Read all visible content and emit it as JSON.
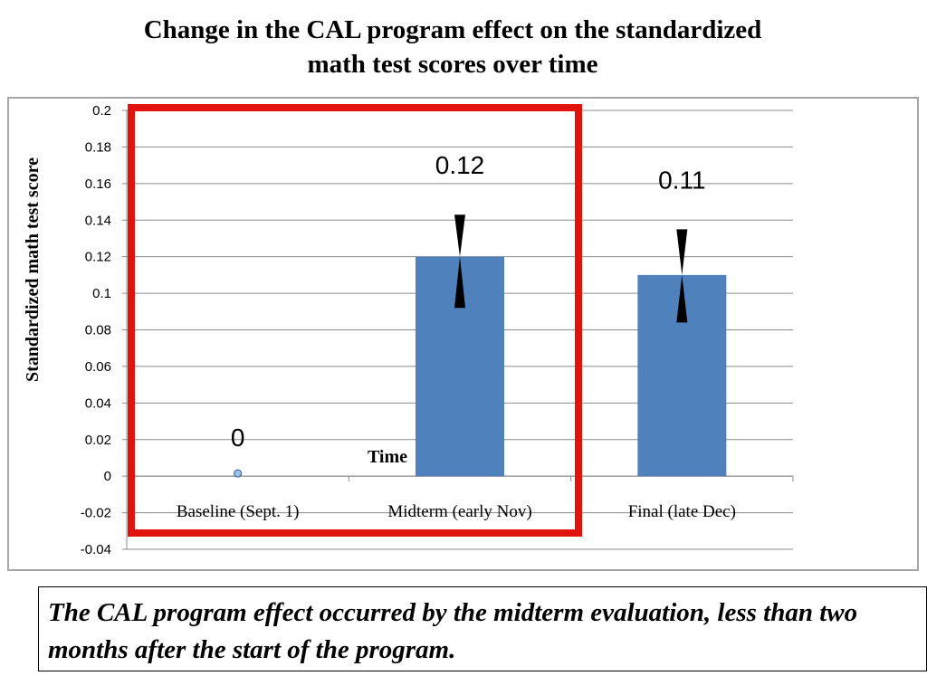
{
  "title_lines": [
    "Change in the CAL program effect on the standardized",
    "math test scores over time"
  ],
  "caption": "The CAL program effect occurred by the midterm evaluation, less than two months after the start of the program.",
  "colors": {
    "bar": "#4f81bd",
    "marker": "#9dc3e6",
    "highlight": "#e0130d",
    "grid": "#8c8c8c",
    "error_bar": "#000000"
  },
  "chart_data": {
    "type": "bar",
    "categories": [
      "Baseline (Sept. 1)",
      "Midterm (early Nov)",
      "Final (late Dec)"
    ],
    "values": [
      0,
      0.12,
      0.11
    ],
    "data_labels": [
      "0",
      "0.12",
      "0.11"
    ],
    "error_bars": [
      {
        "low": 0,
        "high": 0
      },
      {
        "low": 0.092,
        "high": 0.143
      },
      {
        "low": 0.084,
        "high": 0.135
      }
    ],
    "xlabel": "Time",
    "ylabel": "Standardized math test score",
    "ylim": [
      -0.04,
      0.2
    ],
    "yticks": [
      "0.2",
      "0.18",
      "0.16",
      "0.14",
      "0.12",
      "0.1",
      "0.08",
      "0.06",
      "0.04",
      "0.02",
      "0",
      "-0.02",
      "-0.04"
    ],
    "grid": true,
    "highlighted_categories": [
      "Baseline (Sept. 1)",
      "Midterm (early Nov)"
    ]
  }
}
